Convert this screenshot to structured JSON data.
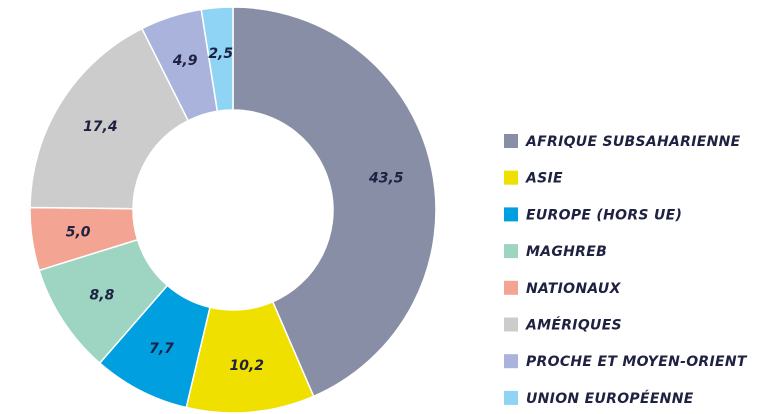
{
  "chart_data": {
    "type": "donut",
    "categories": [
      "AFRIQUE SUBSAHARIENNE",
      "ASIE",
      "EUROPE (HORS UE)",
      "MAGHREB",
      "NATIONAUX",
      "AMÉRIQUES",
      "PROCHE ET MOYEN-ORIENT",
      "UNION EUROPÉENNE"
    ],
    "values": [
      43.5,
      10.2,
      7.7,
      8.8,
      5.0,
      17.4,
      4.9,
      2.5
    ],
    "value_labels": [
      "43,5",
      "10,2",
      "7,7",
      "8,8",
      "5,0",
      "17,4",
      "4,9",
      "2,5"
    ],
    "colors": [
      "#888ea5",
      "#efe000",
      "#009fe0",
      "#9dd4c2",
      "#f3a493",
      "#cccccc",
      "#a9b3dc",
      "#8fd4f4"
    ]
  }
}
